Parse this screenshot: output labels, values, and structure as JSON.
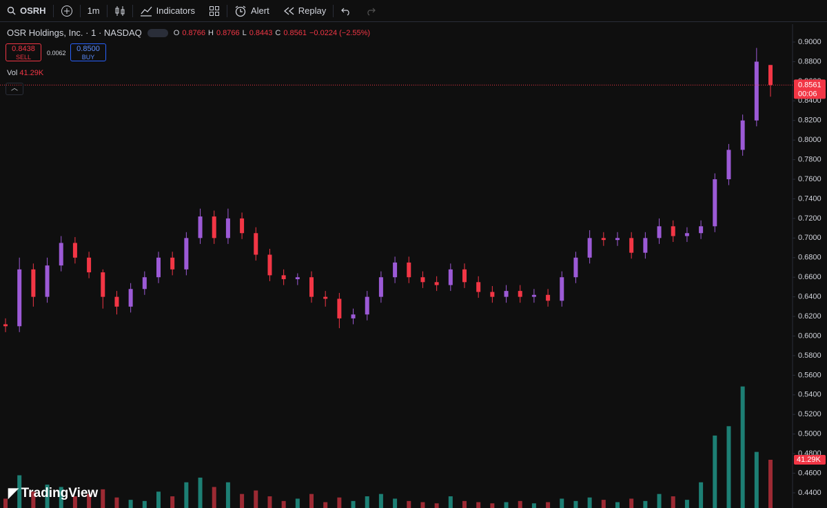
{
  "toolbar": {
    "symbol": "OSRH",
    "interval": "1m",
    "indicators": "Indicators",
    "alert": "Alert",
    "replay": "Replay"
  },
  "legend": {
    "title": "OSR Holdings, Inc. · 1 · NASDAQ",
    "open_label": "O",
    "open": "0.8766",
    "high_label": "H",
    "high": "0.8766",
    "low_label": "L",
    "low": "0.8443",
    "close_label": "C",
    "close": "0.8561",
    "change": "−0.0224 (−2.55%)"
  },
  "trade": {
    "sell_price": "0.8438",
    "sell": "SELL",
    "spread": "0.0062",
    "buy_price": "0.8500",
    "buy": "BUY"
  },
  "volume_legend": {
    "label": "Vol",
    "value": "41.29K"
  },
  "watermark": "TradingView",
  "chart_data": {
    "type": "candlestick",
    "open": [
      0.612,
      0.61,
      0.668,
      0.64,
      0.672,
      0.695,
      0.68,
      0.665,
      0.64,
      0.63,
      0.648,
      0.66,
      0.68,
      0.668,
      0.7,
      0.722,
      0.7,
      0.72,
      0.705,
      0.683,
      0.662,
      0.658,
      0.66,
      0.64,
      0.638,
      0.618,
      0.622,
      0.64,
      0.66,
      0.675,
      0.66,
      0.655,
      0.652,
      0.668,
      0.655,
      0.645,
      0.64,
      0.646,
      0.64,
      0.642,
      0.636,
      0.66,
      0.68,
      0.7,
      0.698,
      0.7,
      0.685,
      0.7,
      0.712,
      0.702,
      0.705,
      0.712,
      0.76,
      0.79,
      0.82,
      0.8766
    ],
    "high": [
      0.618,
      0.68,
      0.674,
      0.68,
      0.702,
      0.701,
      0.686,
      0.668,
      0.646,
      0.654,
      0.666,
      0.686,
      0.686,
      0.706,
      0.73,
      0.728,
      0.73,
      0.726,
      0.711,
      0.689,
      0.668,
      0.664,
      0.666,
      0.646,
      0.644,
      0.628,
      0.646,
      0.666,
      0.681,
      0.681,
      0.666,
      0.661,
      0.674,
      0.674,
      0.661,
      0.651,
      0.652,
      0.652,
      0.648,
      0.648,
      0.666,
      0.686,
      0.708,
      0.706,
      0.706,
      0.706,
      0.706,
      0.72,
      0.718,
      0.711,
      0.718,
      0.766,
      0.796,
      0.826,
      0.894,
      0.8766
    ],
    "low": [
      0.604,
      0.604,
      0.63,
      0.634,
      0.666,
      0.674,
      0.659,
      0.628,
      0.622,
      0.624,
      0.642,
      0.654,
      0.662,
      0.662,
      0.694,
      0.694,
      0.694,
      0.699,
      0.677,
      0.656,
      0.652,
      0.652,
      0.634,
      0.63,
      0.608,
      0.612,
      0.616,
      0.634,
      0.654,
      0.654,
      0.649,
      0.646,
      0.646,
      0.649,
      0.639,
      0.634,
      0.634,
      0.634,
      0.634,
      0.63,
      0.63,
      0.654,
      0.674,
      0.692,
      0.692,
      0.679,
      0.679,
      0.694,
      0.696,
      0.696,
      0.699,
      0.706,
      0.754,
      0.784,
      0.814,
      0.8443
    ],
    "close": [
      0.61,
      0.668,
      0.64,
      0.672,
      0.695,
      0.68,
      0.665,
      0.64,
      0.63,
      0.648,
      0.66,
      0.68,
      0.668,
      0.7,
      0.722,
      0.7,
      0.72,
      0.705,
      0.683,
      0.662,
      0.658,
      0.66,
      0.64,
      0.638,
      0.618,
      0.622,
      0.64,
      0.66,
      0.675,
      0.66,
      0.655,
      0.652,
      0.668,
      0.655,
      0.645,
      0.64,
      0.646,
      0.64,
      0.642,
      0.636,
      0.66,
      0.68,
      0.7,
      0.698,
      0.7,
      0.685,
      0.7,
      0.712,
      0.702,
      0.705,
      0.712,
      0.76,
      0.79,
      0.82,
      0.88,
      0.8561
    ],
    "volume": [
      8,
      28,
      14,
      20,
      18,
      10,
      12,
      16,
      9,
      7,
      6,
      14,
      10,
      22,
      26,
      18,
      22,
      12,
      15,
      10,
      6,
      8,
      12,
      5,
      9,
      6,
      10,
      12,
      8,
      6,
      5,
      4,
      10,
      6,
      5,
      4,
      5,
      6,
      4,
      5,
      8,
      6,
      9,
      7,
      5,
      8,
      6,
      12,
      10,
      7,
      22,
      62,
      70,
      104,
      48,
      41.29
    ],
    "up_color": "#9c5ad6",
    "down_color": "#f23645",
    "volume_up_color": "#1d7f74",
    "volume_down_color": "#9c2a33",
    "ylim": [
      0.4245,
      0.9183
    ],
    "yticks": [
      {
        "value": 0.9,
        "label": "0.9000"
      },
      {
        "value": 0.88,
        "label": "0.8800"
      },
      {
        "value": 0.86,
        "label": "0.8600"
      },
      {
        "value": 0.84,
        "label": "0.8400"
      },
      {
        "value": 0.82,
        "label": "0.8200"
      },
      {
        "value": 0.8,
        "label": "0.8000"
      },
      {
        "value": 0.78,
        "label": "0.7800"
      },
      {
        "value": 0.76,
        "label": "0.7600"
      },
      {
        "value": 0.74,
        "label": "0.7400"
      },
      {
        "value": 0.72,
        "label": "0.7200"
      },
      {
        "value": 0.7,
        "label": "0.7000"
      },
      {
        "value": 0.68,
        "label": "0.6800"
      },
      {
        "value": 0.66,
        "label": "0.6600"
      },
      {
        "value": 0.64,
        "label": "0.6400"
      },
      {
        "value": 0.62,
        "label": "0.6200"
      },
      {
        "value": 0.6,
        "label": "0.6000"
      },
      {
        "value": 0.58,
        "label": "0.5800"
      },
      {
        "value": 0.56,
        "label": "0.5600"
      },
      {
        "value": 0.54,
        "label": "0.5400"
      },
      {
        "value": 0.52,
        "label": "0.5200"
      },
      {
        "value": 0.5,
        "label": "0.5000"
      },
      {
        "value": 0.48,
        "label": "0.4800"
      },
      {
        "value": 0.46,
        "label": "0.4600"
      },
      {
        "value": 0.44,
        "label": "0.4400"
      }
    ],
    "vlim": [
      0,
      104.4
    ],
    "last_price": {
      "value": 0.8561,
      "label": "0.8561"
    },
    "countdown": "00:06",
    "last_volume": {
      "value": 41.29,
      "label": "41.29K"
    }
  }
}
